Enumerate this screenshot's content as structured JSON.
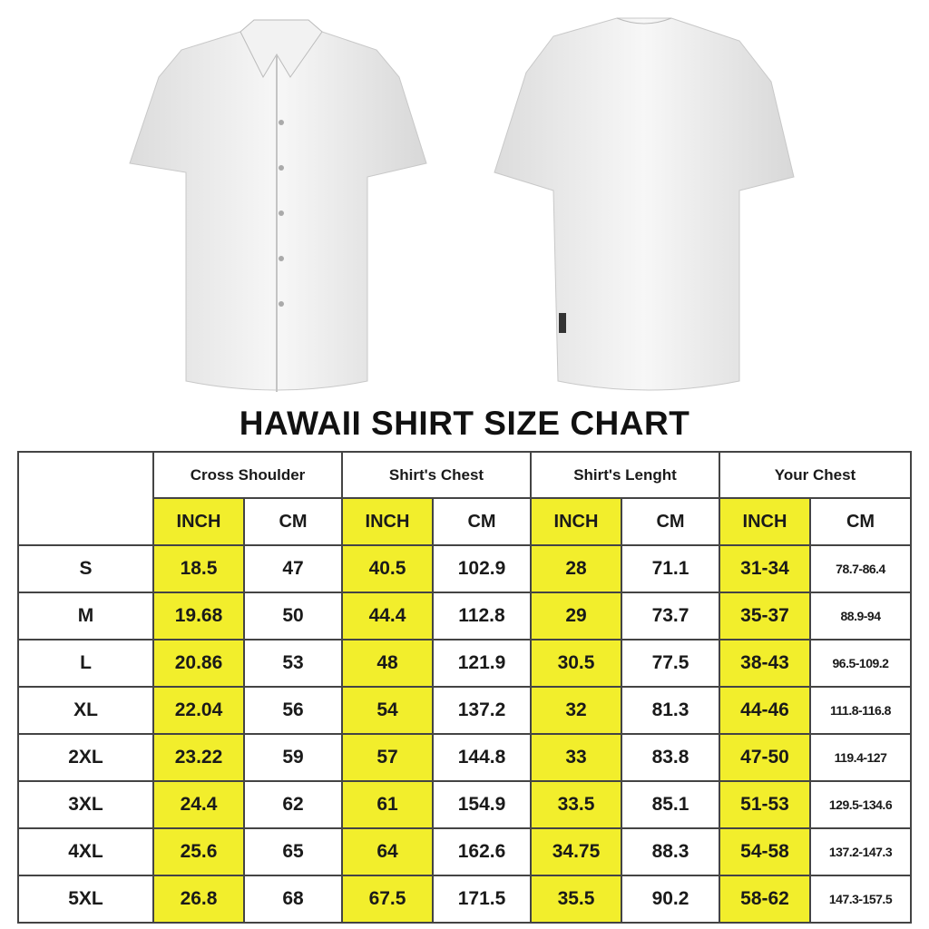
{
  "title": "HAWAII SHIRT SIZE CHART",
  "colors": {
    "highlight": "#f2ee2c",
    "border": "#444444"
  },
  "groups": [
    "Cross Shoulder",
    "Shirt's Chest",
    "Shirt's Lenght",
    "Your Chest"
  ],
  "units": [
    "INCH",
    "CM",
    "INCH",
    "CM",
    "INCH",
    "CM",
    "INCH",
    "CM"
  ],
  "rows": [
    {
      "size": "S",
      "values": [
        "18.5",
        "47",
        "40.5",
        "102.9",
        "28",
        "71.1",
        "31-34",
        "78.7-86.4"
      ]
    },
    {
      "size": "M",
      "values": [
        "19.68",
        "50",
        "44.4",
        "112.8",
        "29",
        "73.7",
        "35-37",
        "88.9-94"
      ]
    },
    {
      "size": "L",
      "values": [
        "20.86",
        "53",
        "48",
        "121.9",
        "30.5",
        "77.5",
        "38-43",
        "96.5-109.2"
      ]
    },
    {
      "size": "XL",
      "values": [
        "22.04",
        "56",
        "54",
        "137.2",
        "32",
        "81.3",
        "44-46",
        "111.8-116.8"
      ]
    },
    {
      "size": "2XL",
      "values": [
        "23.22",
        "59",
        "57",
        "144.8",
        "33",
        "83.8",
        "47-50",
        "119.4-127"
      ]
    },
    {
      "size": "3XL",
      "values": [
        "24.4",
        "62",
        "61",
        "154.9",
        "33.5",
        "85.1",
        "51-53",
        "129.5-134.6"
      ]
    },
    {
      "size": "4XL",
      "values": [
        "25.6",
        "65",
        "64",
        "162.6",
        "34.75",
        "88.3",
        "54-58",
        "137.2-147.3"
      ]
    },
    {
      "size": "5XL",
      "values": [
        "26.8",
        "68",
        "67.5",
        "171.5",
        "35.5",
        "90.2",
        "58-62",
        "147.3-157.5"
      ]
    }
  ]
}
